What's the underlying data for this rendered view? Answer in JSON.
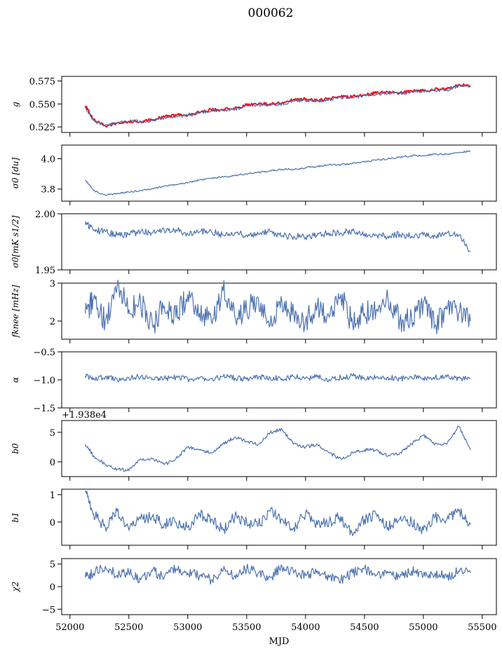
{
  "figure": {
    "title": "000062"
  },
  "chart_data": [
    {
      "type": "line",
      "panel": "g",
      "ylabel": "g",
      "xlim": [
        51930,
        55620
      ],
      "ylim": [
        0.519,
        0.58
      ],
      "xticks": [
        52000,
        52500,
        53000,
        53500,
        54000,
        54500,
        55000,
        55500
      ],
      "yticks": [
        "0.525",
        "0.550",
        "0.575"
      ],
      "x_tick_labels_shown": false,
      "colors": [
        "#ff0000",
        "#4c72b0"
      ],
      "x_range": [
        52130,
        55400
      ],
      "series": [
        {
          "name": "",
          "color": "#ff0000",
          "x": [
            52130,
            52200,
            52300,
            52400,
            52500,
            52600,
            52700,
            52800,
            52900,
            53000,
            53100,
            53200,
            53300,
            53400,
            53500,
            53600,
            53700,
            53800,
            53900,
            54000,
            54100,
            54200,
            54300,
            54400,
            54500,
            54600,
            54700,
            54800,
            54900,
            55000,
            55100,
            55200,
            55300,
            55400
          ],
          "values": [
            0.548,
            0.533,
            0.526,
            0.529,
            0.531,
            0.531,
            0.533,
            0.536,
            0.538,
            0.538,
            0.541,
            0.544,
            0.544,
            0.545,
            0.549,
            0.55,
            0.55,
            0.551,
            0.555,
            0.555,
            0.554,
            0.556,
            0.558,
            0.558,
            0.56,
            0.562,
            0.563,
            0.562,
            0.564,
            0.565,
            0.566,
            0.566,
            0.571,
            0.57
          ]
        },
        {
          "name": "",
          "color": "#4c72b0",
          "x": [
            52130,
            52200,
            52300,
            52400,
            52500,
            52600,
            52700,
            52800,
            52900,
            53000,
            53100,
            53200,
            53300,
            53400,
            53500,
            53600,
            53700,
            53800,
            53900,
            54000,
            54100,
            54200,
            54300,
            54400,
            54500,
            54600,
            54700,
            54800,
            54900,
            55000,
            55100,
            55200,
            55300,
            55400
          ],
          "values": [
            0.546,
            0.532,
            0.526,
            0.529,
            0.531,
            0.531,
            0.532,
            0.535,
            0.537,
            0.537,
            0.54,
            0.543,
            0.543,
            0.544,
            0.548,
            0.549,
            0.549,
            0.55,
            0.553,
            0.554,
            0.553,
            0.555,
            0.557,
            0.557,
            0.559,
            0.561,
            0.562,
            0.561,
            0.563,
            0.564,
            0.565,
            0.565,
            0.57,
            0.569
          ]
        }
      ]
    },
    {
      "type": "line",
      "panel": "sigma0_du",
      "ylabel": "σ0 [du]",
      "xlim": [
        51930,
        55620
      ],
      "ylim": [
        3.72,
        4.09
      ],
      "yticks": [
        "3.8",
        "4.0"
      ],
      "x_tick_labels_shown": false,
      "series": [
        {
          "name": "",
          "color": "#4c72b0",
          "x": [
            52130,
            52200,
            52300,
            52400,
            52500,
            52600,
            52700,
            52800,
            52900,
            53000,
            53100,
            53200,
            53300,
            53400,
            53500,
            53600,
            53700,
            53800,
            53900,
            54000,
            54100,
            54200,
            54300,
            54400,
            54500,
            54600,
            54700,
            54800,
            54900,
            55000,
            55100,
            55200,
            55300,
            55400
          ],
          "values": [
            3.86,
            3.79,
            3.76,
            3.77,
            3.78,
            3.79,
            3.8,
            3.82,
            3.83,
            3.84,
            3.86,
            3.87,
            3.88,
            3.89,
            3.9,
            3.91,
            3.92,
            3.93,
            3.93,
            3.94,
            3.95,
            3.96,
            3.96,
            3.97,
            3.98,
            3.99,
            4.0,
            4.01,
            4.02,
            4.02,
            4.03,
            4.03,
            4.04,
            4.05
          ]
        }
      ]
    },
    {
      "type": "line",
      "panel": "sigma0_mks",
      "ylabel": "σ0[mK s1/2]",
      "xlim": [
        51930,
        55620
      ],
      "ylim": [
        1.95,
        2.0
      ],
      "yticks": [
        "1.95",
        "2.00"
      ],
      "x_tick_labels_shown": false,
      "series": [
        {
          "name": "",
          "color": "#4c72b0",
          "x": [
            52130,
            52200,
            52300,
            52400,
            52500,
            52600,
            52700,
            52800,
            52900,
            53000,
            53100,
            53200,
            53300,
            53400,
            53500,
            53600,
            53700,
            53800,
            53900,
            54000,
            54100,
            54200,
            54300,
            54400,
            54500,
            54600,
            54700,
            54800,
            54900,
            55000,
            55100,
            55200,
            55300,
            55400
          ],
          "values": [
            1.993,
            1.985,
            1.984,
            1.981,
            1.982,
            1.984,
            1.983,
            1.985,
            1.986,
            1.982,
            1.984,
            1.984,
            1.981,
            1.983,
            1.981,
            1.982,
            1.984,
            1.98,
            1.98,
            1.979,
            1.981,
            1.983,
            1.983,
            1.985,
            1.982,
            1.981,
            1.98,
            1.982,
            1.98,
            1.981,
            1.98,
            1.983,
            1.981,
            1.967
          ]
        }
      ]
    },
    {
      "type": "line",
      "panel": "fknee",
      "ylabel": "fknee [mHz]",
      "xlim": [
        51930,
        55620
      ],
      "ylim": [
        1.52,
        3.0
      ],
      "yticks": [
        "2",
        "3"
      ],
      "x_tick_labels_shown": false,
      "series": [
        {
          "name": "",
          "color": "#4c72b0",
          "x": [
            52130,
            52200,
            52300,
            52400,
            52500,
            52600,
            52700,
            52800,
            52900,
            53000,
            53100,
            53200,
            53300,
            53400,
            53500,
            53600,
            53700,
            53800,
            53900,
            54000,
            54100,
            54200,
            54300,
            54400,
            54500,
            54600,
            54700,
            54800,
            54900,
            55000,
            55100,
            55200,
            55300,
            55400
          ],
          "values": [
            2.2,
            2.6,
            2.0,
            2.9,
            2.3,
            2.5,
            1.9,
            2.4,
            2.1,
            2.7,
            2.2,
            2.0,
            2.8,
            2.1,
            2.3,
            2.6,
            1.9,
            2.5,
            2.2,
            2.0,
            2.4,
            2.1,
            2.7,
            1.9,
            2.2,
            2.3,
            2.6,
            2.0,
            2.1,
            2.5,
            1.9,
            2.3,
            2.2,
            2.0
          ]
        }
      ]
    },
    {
      "type": "line",
      "panel": "alpha",
      "ylabel": "α",
      "xlim": [
        51930,
        55620
      ],
      "ylim": [
        -1.5,
        -0.5
      ],
      "yticks": [
        "−1.5",
        "−1.0",
        "−0.5"
      ],
      "x_tick_labels_shown": false,
      "series": [
        {
          "name": "",
          "color": "#4c72b0",
          "x": [
            52130,
            52200,
            52300,
            52400,
            52500,
            52600,
            52700,
            52800,
            52900,
            53000,
            53100,
            53200,
            53300,
            53400,
            53500,
            53600,
            53700,
            53800,
            53900,
            54000,
            54100,
            54200,
            54300,
            54400,
            54500,
            54600,
            54700,
            54800,
            54900,
            55000,
            55100,
            55200,
            55300,
            55400
          ],
          "values": [
            -0.93,
            -0.97,
            -0.95,
            -0.99,
            -0.96,
            -0.94,
            -0.98,
            -0.97,
            -0.95,
            -0.99,
            -0.96,
            -0.98,
            -0.94,
            -0.97,
            -0.99,
            -0.95,
            -0.96,
            -0.98,
            -0.94,
            -0.97,
            -0.95,
            -0.99,
            -0.96,
            -0.93,
            -0.98,
            -0.96,
            -0.95,
            -0.98,
            -0.94,
            -0.97,
            -0.96,
            -0.95,
            -0.97,
            -0.98
          ]
        }
      ]
    },
    {
      "type": "line",
      "panel": "b0",
      "ylabel": "b0",
      "offset_label": "+1.938e4",
      "xlim": [
        51930,
        55620
      ],
      "ylim": [
        -2.5,
        7.0
      ],
      "yticks": [
        "0",
        "5"
      ],
      "x_tick_labels_shown": false,
      "series": [
        {
          "name": "",
          "color": "#4c72b0",
          "x": [
            52130,
            52200,
            52300,
            52400,
            52500,
            52600,
            52700,
            52800,
            52900,
            53000,
            53100,
            53200,
            53300,
            53400,
            53500,
            53600,
            53700,
            53800,
            53900,
            54000,
            54100,
            54200,
            54300,
            54400,
            54500,
            54600,
            54700,
            54800,
            54900,
            55000,
            55100,
            55200,
            55300,
            55400
          ],
          "values": [
            3.0,
            1.0,
            -0.5,
            -1.2,
            -1.5,
            0.5,
            0.5,
            -0.5,
            0.5,
            2.5,
            2.0,
            1.5,
            3.0,
            4.2,
            3.5,
            3.0,
            5.0,
            5.5,
            3.0,
            2.5,
            3.0,
            1.5,
            0.5,
            1.5,
            2.0,
            2.0,
            1.0,
            1.5,
            3.0,
            4.5,
            3.0,
            3.0,
            6.0,
            2.0
          ]
        }
      ]
    },
    {
      "type": "line",
      "panel": "b1",
      "ylabel": "b1",
      "xlim": [
        51930,
        55620
      ],
      "ylim": [
        -0.85,
        1.2
      ],
      "yticks": [
        "0",
        "1"
      ],
      "x_tick_labels_shown": false,
      "series": [
        {
          "name": "",
          "color": "#4c72b0",
          "x": [
            52130,
            52200,
            52300,
            52400,
            52500,
            52600,
            52700,
            52800,
            52900,
            53000,
            53100,
            53200,
            53300,
            53400,
            53500,
            53600,
            53700,
            53800,
            53900,
            54000,
            54100,
            54200,
            54300,
            54400,
            54500,
            54600,
            54700,
            54800,
            54900,
            55000,
            55100,
            55200,
            55300,
            55400
          ],
          "values": [
            1.1,
            0.3,
            -0.2,
            0.4,
            -0.3,
            0.1,
            0.2,
            -0.1,
            0.0,
            -0.2,
            0.3,
            0.1,
            -0.3,
            0.2,
            0.0,
            -0.1,
            0.4,
            0.1,
            -0.2,
            0.3,
            -0.1,
            0.0,
            0.2,
            -0.5,
            0.1,
            0.3,
            -0.2,
            0.1,
            0.0,
            -0.3,
            0.2,
            0.1,
            0.4,
            -0.1
          ]
        }
      ]
    },
    {
      "type": "line",
      "panel": "chi2",
      "ylabel": "χ2",
      "xlabel": "MJD",
      "xlim": [
        51930,
        55620
      ],
      "ylim": [
        -6.2,
        6.2
      ],
      "xticks": [
        52000,
        52500,
        53000,
        53500,
        54000,
        54500,
        55000,
        55500
      ],
      "yticks": [
        "−5",
        "0",
        "5"
      ],
      "x_tick_labels_shown": true,
      "series": [
        {
          "name": "",
          "color": "#4c72b0",
          "x": [
            52130,
            52200,
            52300,
            52400,
            52500,
            52600,
            52700,
            52800,
            52900,
            53000,
            53100,
            53200,
            53300,
            53400,
            53500,
            53600,
            53700,
            53800,
            53900,
            54000,
            54100,
            54200,
            54300,
            54400,
            54500,
            54600,
            54700,
            54800,
            54900,
            55000,
            55100,
            55200,
            55300,
            55400
          ],
          "values": [
            2.0,
            3.0,
            4.5,
            2.5,
            3.0,
            1.5,
            3.5,
            2.0,
            4.0,
            3.0,
            2.5,
            1.5,
            3.5,
            2.5,
            4.0,
            3.0,
            2.0,
            4.5,
            3.0,
            2.5,
            3.5,
            2.0,
            1.5,
            3.0,
            4.0,
            2.5,
            3.0,
            2.0,
            3.5,
            2.5,
            3.0,
            2.0,
            3.5,
            3.0
          ]
        }
      ]
    }
  ]
}
